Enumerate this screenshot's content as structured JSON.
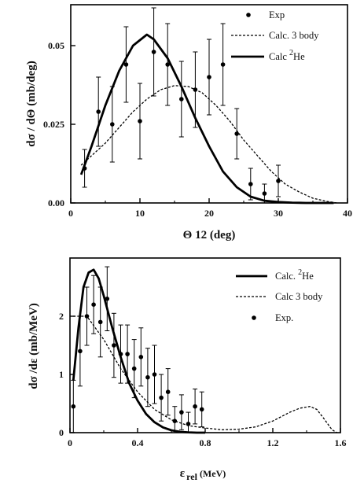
{
  "chart_data": [
    {
      "type": "scatter",
      "xlabel_main": "Θ",
      "xlabel_rest": " 12 (deg)",
      "ylabel": "dσ / dΘ   (mb/deg)",
      "xlim": [
        0,
        40
      ],
      "ylim": [
        0,
        0.063
      ],
      "xticks": [
        0,
        10,
        20,
        30,
        40
      ],
      "yticks": [
        0.0,
        0.025,
        0.05
      ],
      "ytick_labels": [
        "0.00",
        "0.025",
        "0.05"
      ],
      "legend": {
        "position": "top-right",
        "exp": "Exp",
        "calc3": "Calc. 3 body",
        "calc2": "Calc ",
        "calc2_sup": "2",
        "calc2_tail": "He"
      },
      "series": [
        {
          "name": "Exp",
          "style": "points",
          "x": [
            2,
            4,
            6,
            8,
            10,
            12,
            14,
            16,
            18,
            20,
            22,
            24,
            26,
            28,
            30
          ],
          "y": [
            0.011,
            0.029,
            0.025,
            0.044,
            0.026,
            0.048,
            0.044,
            0.033,
            0.036,
            0.04,
            0.044,
            0.022,
            0.006,
            0.003,
            0.007
          ],
          "err": [
            0.006,
            0.011,
            0.012,
            0.012,
            0.012,
            0.014,
            0.013,
            0.012,
            0.012,
            0.012,
            0.013,
            0.008,
            0.005,
            0.003,
            0.005
          ]
        },
        {
          "name": "Calc. 3 body",
          "style": "dashed",
          "x": [
            1.5,
            3,
            5,
            7,
            9,
            11,
            13,
            15,
            17,
            19,
            21,
            23,
            25,
            27,
            29,
            31,
            33,
            35,
            37,
            38.5
          ],
          "y": [
            0.012,
            0.015,
            0.019,
            0.024,
            0.029,
            0.033,
            0.036,
            0.0373,
            0.037,
            0.035,
            0.031,
            0.026,
            0.02,
            0.015,
            0.01,
            0.006,
            0.0035,
            0.0015,
            0.0005,
            0.0
          ]
        },
        {
          "name": "Calc 2He",
          "style": "solid",
          "x": [
            1.5,
            3,
            5,
            7,
            9,
            11,
            12,
            14,
            16,
            18,
            20,
            22,
            24,
            26,
            28,
            30,
            32,
            34,
            36,
            38
          ],
          "y": [
            0.009,
            0.018,
            0.031,
            0.042,
            0.05,
            0.0535,
            0.052,
            0.046,
            0.037,
            0.027,
            0.018,
            0.01,
            0.005,
            0.002,
            0.0007,
            0.0003,
            0.0001,
            0.0,
            0.0,
            0.0
          ]
        }
      ]
    },
    {
      "type": "scatter",
      "xlabel_main": "ε",
      "xlabel_sub": "rel",
      "xlabel_unit": " (MeV)",
      "ylabel": "dσ /dε   (mb/MeV)",
      "xlim": [
        0,
        1.6
      ],
      "ylim": [
        0,
        3.0
      ],
      "xticks": [
        0,
        0.4,
        0.8,
        1.2,
        1.6
      ],
      "yticks": [
        0,
        1,
        2
      ],
      "legend": {
        "position": "top-right",
        "calc2": "Calc. ",
        "calc2_sup": "2",
        "calc2_tail": "He",
        "calc3": "Calc 3 body",
        "exp": "Exp."
      },
      "series": [
        {
          "name": "Calc. 2He",
          "style": "solid",
          "x": [
            0.02,
            0.05,
            0.08,
            0.11,
            0.14,
            0.17,
            0.2,
            0.25,
            0.3,
            0.35,
            0.4,
            0.45,
            0.5,
            0.55,
            0.6,
            0.65,
            0.7,
            0.75,
            0.8
          ],
          "y": [
            0.9,
            1.8,
            2.5,
            2.75,
            2.8,
            2.65,
            2.35,
            1.8,
            1.3,
            0.85,
            0.55,
            0.32,
            0.18,
            0.09,
            0.04,
            0.015,
            0.005,
            0.0,
            0.0
          ]
        },
        {
          "name": "Calc 3 body",
          "style": "dashed",
          "x": [
            0.02,
            0.1,
            0.2,
            0.3,
            0.4,
            0.5,
            0.6,
            0.7,
            0.8,
            0.9,
            1.0,
            1.1,
            1.2,
            1.3,
            1.36,
            1.42,
            1.46,
            1.5,
            1.55,
            1.58
          ],
          "y": [
            2.0,
            2.0,
            1.6,
            1.1,
            0.7,
            0.4,
            0.22,
            0.12,
            0.08,
            0.05,
            0.06,
            0.1,
            0.2,
            0.35,
            0.42,
            0.45,
            0.4,
            0.25,
            0.05,
            0.0
          ]
        },
        {
          "name": "Exp.",
          "style": "points",
          "x": [
            0.02,
            0.06,
            0.1,
            0.14,
            0.18,
            0.22,
            0.26,
            0.3,
            0.34,
            0.38,
            0.42,
            0.46,
            0.5,
            0.54,
            0.58,
            0.62,
            0.66,
            0.7,
            0.74,
            0.78
          ],
          "y": [
            0.45,
            1.4,
            2.0,
            2.2,
            1.9,
            2.3,
            1.5,
            1.35,
            1.35,
            1.1,
            1.3,
            0.95,
            1.0,
            0.6,
            0.7,
            0.2,
            0.35,
            0.15,
            0.45,
            0.4
          ],
          "err": [
            0.45,
            0.6,
            0.5,
            0.5,
            0.6,
            0.55,
            0.55,
            0.5,
            0.5,
            0.5,
            0.5,
            0.5,
            0.5,
            0.4,
            0.4,
            0.25,
            0.3,
            0.2,
            0.3,
            0.3
          ]
        }
      ]
    }
  ]
}
